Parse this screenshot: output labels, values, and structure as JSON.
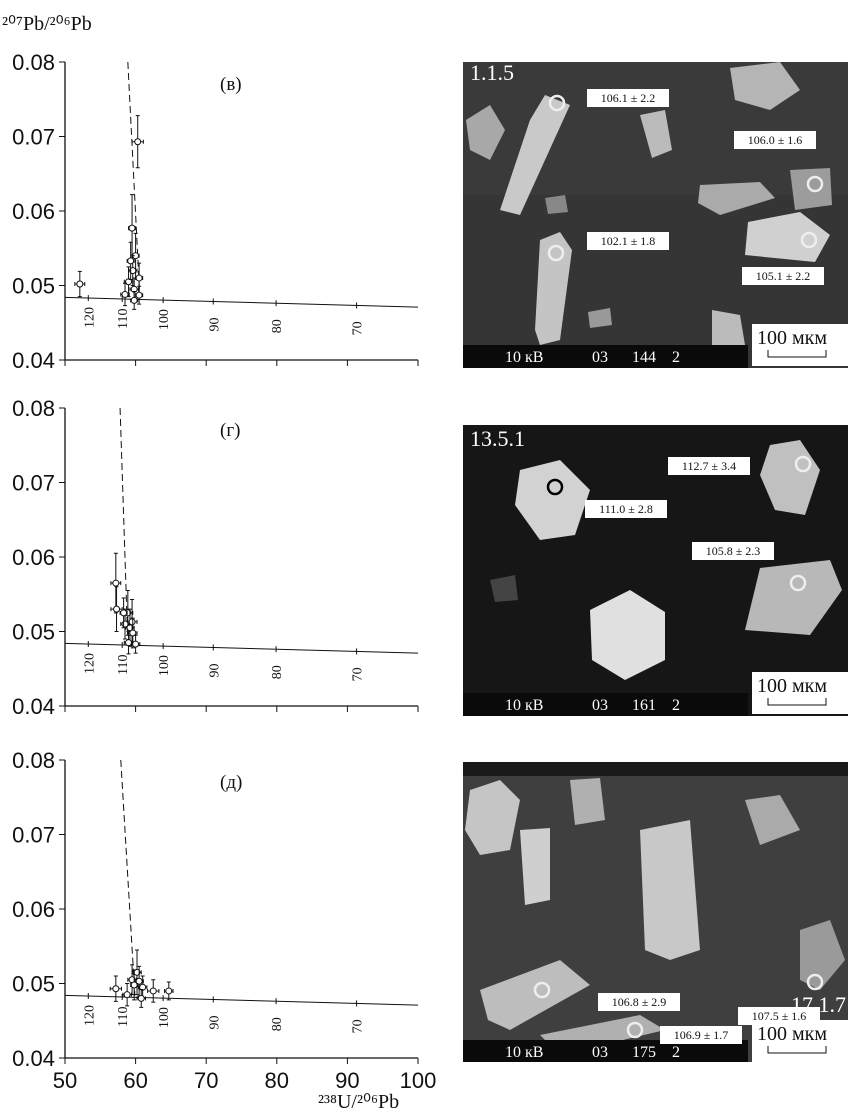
{
  "y_label": "²⁰⁷Pb/²⁰⁶Pb",
  "x_label": "²³⁸U/²⁰⁶Pb",
  "chart_data": [
    {
      "type": "scatter",
      "title": "(в)",
      "xlim": [
        50,
        100
      ],
      "ylim": [
        0.04,
        0.08
      ],
      "xticks": [
        50,
        60,
        70,
        80,
        90,
        100
      ],
      "xtick_labels": false,
      "yticks": [
        0.04,
        0.05,
        0.06,
        0.07,
        0.08
      ],
      "concordia": {
        "x": [
          50,
          100
        ],
        "y": [
          0.0484,
          0.0471
        ]
      },
      "discordia": {
        "x": [
          58.9,
          60.6
        ],
        "y": [
          0.08,
          0.0484
        ]
      },
      "concordia_ages": [
        {
          "value": 120,
          "x": 53.3
        },
        {
          "value": 110,
          "x": 58.1
        },
        {
          "value": 100,
          "x": 63.9
        },
        {
          "value": 90,
          "x": 71
        },
        {
          "value": 80,
          "x": 79.9
        },
        {
          "value": 70,
          "x": 91.3
        }
      ],
      "series": [
        {
          "color": "#111",
          "x": [
            60.3,
            59.5,
            60,
            59.6,
            59,
            60.5,
            59.8,
            58.5,
            59.8,
            60.5,
            52.1,
            59.3
          ],
          "values": [
            0.0693,
            0.0577,
            0.054,
            0.052,
            0.0505,
            0.051,
            0.0495,
            0.0488,
            0.048,
            0.0487,
            0.0502,
            0.0533
          ],
          "xerr": [
            0.8,
            0.5,
            0.5,
            0.6,
            0.6,
            0.5,
            0.6,
            0.6,
            0.5,
            0.5,
            0.7,
            0.5
          ],
          "yerr": [
            0.0035,
            0.0045,
            0.003,
            0.002,
            0.002,
            0.002,
            0.0015,
            0.0015,
            0.0012,
            0.0012,
            0.0017,
            0.0025
          ]
        }
      ]
    },
    {
      "type": "scatter",
      "title": "(г)",
      "xlim": [
        50,
        100
      ],
      "ylim": [
        0.04,
        0.08
      ],
      "xticks": [
        50,
        60,
        70,
        80,
        90,
        100
      ],
      "xtick_labels": false,
      "yticks": [
        0.04,
        0.05,
        0.06,
        0.07,
        0.08
      ],
      "concordia": {
        "x": [
          50,
          100
        ],
        "y": [
          0.0484,
          0.0471
        ]
      },
      "discordia": {
        "x": [
          57.8,
          58.9
        ],
        "y": [
          0.08,
          0.0484
        ]
      },
      "concordia_ages": [
        {
          "value": 120,
          "x": 53.3
        },
        {
          "value": 110,
          "x": 58.1
        },
        {
          "value": 100,
          "x": 63.9
        },
        {
          "value": 90,
          "x": 71
        },
        {
          "value": 80,
          "x": 79.9
        },
        {
          "value": 70,
          "x": 91.3
        }
      ],
      "series": [
        {
          "color": "#111",
          "x": [
            57.2,
            57.3,
            58.9,
            59.2,
            59.5,
            58.5,
            59.6,
            59,
            60,
            58.3
          ],
          "values": [
            0.0565,
            0.053,
            0.0525,
            0.0505,
            0.0513,
            0.051,
            0.0498,
            0.0485,
            0.0483,
            0.0525
          ],
          "xerr": [
            0.7,
            0.8,
            0.7,
            0.6,
            0.7,
            0.6,
            0.6,
            0.6,
            0.6,
            0.5
          ],
          "yerr": [
            0.004,
            0.003,
            0.003,
            0.0025,
            0.003,
            0.002,
            0.002,
            0.0015,
            0.0012,
            0.002
          ]
        }
      ]
    },
    {
      "type": "scatter",
      "title": "(д)",
      "xlim": [
        50,
        100
      ],
      "ylim": [
        0.04,
        0.08
      ],
      "xticks": [
        50,
        60,
        70,
        80,
        90,
        100
      ],
      "xtick_labels": true,
      "yticks": [
        0.04,
        0.05,
        0.06,
        0.07,
        0.08
      ],
      "concordia": {
        "x": [
          50,
          100
        ],
        "y": [
          0.0484,
          0.0471
        ]
      },
      "discordia": {
        "x": [
          57.9,
          59.9
        ],
        "y": [
          0.08,
          0.0484
        ]
      },
      "concordia_ages": [
        {
          "value": 120,
          "x": 53.3
        },
        {
          "value": 110,
          "x": 58.1
        },
        {
          "value": 100,
          "x": 63.9
        },
        {
          "value": 90,
          "x": 71
        },
        {
          "value": 80,
          "x": 79.9
        },
        {
          "value": 70,
          "x": 91.3
        }
      ],
      "series": [
        {
          "color": "#111",
          "x": [
            60.2,
            59.5,
            60.5,
            59.8,
            57.2,
            62.5,
            64.7,
            61,
            58.8,
            60.8
          ],
          "values": [
            0.0515,
            0.0505,
            0.0503,
            0.0498,
            0.0493,
            0.049,
            0.049,
            0.0495,
            0.0485,
            0.048
          ],
          "xerr": [
            0.6,
            0.6,
            0.6,
            0.5,
            0.8,
            0.8,
            0.6,
            0.6,
            0.6,
            0.6
          ],
          "yerr": [
            0.003,
            0.002,
            0.002,
            0.002,
            0.0017,
            0.0015,
            0.0012,
            0.0015,
            0.0015,
            0.0012
          ]
        }
      ]
    }
  ],
  "images": [
    {
      "id": "1.1.5",
      "spots": [
        "106.1 ± 2.2",
        "106.0 ± 1.6",
        "102.1 ± 1.8",
        "105.1 ± 2.2"
      ],
      "footer": [
        "10 кВ",
        "03",
        "144",
        "2"
      ],
      "scale": "100 мкм"
    },
    {
      "id": "13.5.1",
      "spots": [
        "112.7 ± 3.4",
        "111.0 ± 2.8",
        "105.8 ± 2.3"
      ],
      "footer": [
        "10 кВ",
        "03",
        "161",
        "2"
      ],
      "scale": "100 мкм"
    },
    {
      "id": "17.1.7",
      "spots": [
        "106.8 ± 2.9",
        "107.5 ± 1.6",
        "106.9 ± 1.7"
      ],
      "footer": [
        "10 кВ",
        "03",
        "175",
        "2"
      ],
      "scale": "100 мкм"
    }
  ]
}
